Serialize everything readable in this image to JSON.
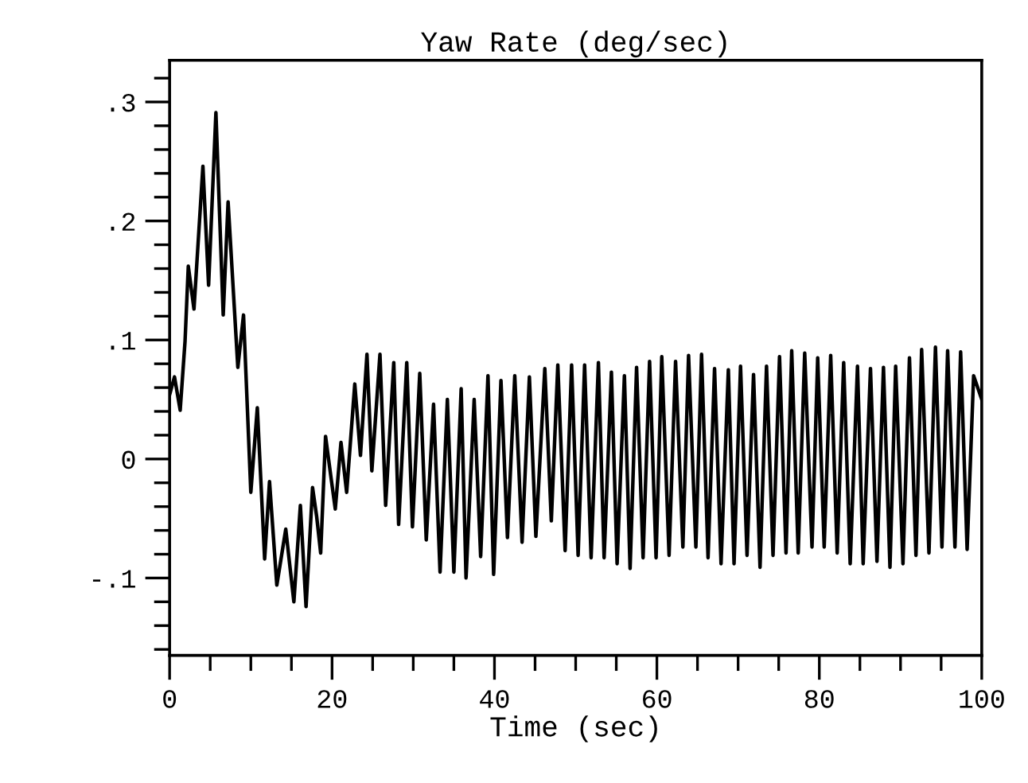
{
  "chart_data": {
    "type": "line",
    "title": "Yaw Rate (deg/sec)",
    "xlabel": "Time (sec)",
    "xlim": [
      0,
      100
    ],
    "ylim": [
      -0.165,
      0.335
    ],
    "xticks": [
      0,
      {
        "value": 5,
        "label": null
      },
      {
        "value": 10,
        "label": null
      },
      {
        "value": 15,
        "label": null
      },
      20,
      {
        "value": 25,
        "label": null
      },
      {
        "value": 30,
        "label": null
      },
      {
        "value": 35,
        "label": null
      },
      40,
      {
        "value": 45,
        "label": null
      },
      {
        "value": 50,
        "label": null
      },
      {
        "value": 55,
        "label": null
      },
      60,
      {
        "value": 65,
        "label": null
      },
      {
        "value": 70,
        "label": null
      },
      {
        "value": 75,
        "label": null
      },
      80,
      {
        "value": 85,
        "label": null
      },
      {
        "value": 90,
        "label": null
      },
      {
        "value": 95,
        "label": null
      },
      100
    ],
    "yticks": [
      {
        "value": -0.16,
        "label": null
      },
      {
        "value": -0.14,
        "label": null
      },
      {
        "value": -0.12,
        "label": null
      },
      {
        "value": -0.1,
        "label": "-.1"
      },
      {
        "value": -0.08,
        "label": null
      },
      {
        "value": -0.06,
        "label": null
      },
      {
        "value": -0.04,
        "label": null
      },
      {
        "value": -0.02,
        "label": null
      },
      0,
      {
        "value": 0.02,
        "label": null
      },
      {
        "value": 0.04,
        "label": null
      },
      {
        "value": 0.06,
        "label": null
      },
      {
        "value": 0.08,
        "label": null
      },
      {
        "value": 0.1,
        "label": ".1"
      },
      {
        "value": 0.12,
        "label": null
      },
      {
        "value": 0.14,
        "label": null
      },
      {
        "value": 0.16,
        "label": null
      },
      {
        "value": 0.18,
        "label": null
      },
      {
        "value": 0.2,
        "label": ".2"
      },
      {
        "value": 0.22,
        "label": null
      },
      {
        "value": 0.24,
        "label": null
      },
      {
        "value": 0.26,
        "label": null
      },
      {
        "value": 0.28,
        "label": null
      },
      {
        "value": 0.3,
        "label": ".3"
      },
      {
        "value": 0.32,
        "label": null
      }
    ],
    "grid": false,
    "marker": "none",
    "line_style": "solid",
    "series": [
      {
        "color": "#000000",
        "x": [
          0,
          0.6,
          1.3,
          1.9,
          2.3,
          3.0,
          4.1,
          4.8,
          5.7,
          6.6,
          7.2,
          8.4,
          9.1,
          10.0,
          10.8,
          11.7,
          12.3,
          13.2,
          14.3,
          15.3,
          16.1,
          16.8,
          17.6,
          18.1,
          18.6,
          19.2,
          19.9,
          20.4,
          21.1,
          21.8,
          22.8,
          23.5,
          24.3,
          24.9,
          25.9,
          26.6,
          27.6,
          28.2,
          29.2,
          29.9,
          30.8,
          31.6,
          32.5,
          33.3,
          34.2,
          35.0,
          35.9,
          36.5,
          37.5,
          38.3,
          39.2,
          39.9,
          40.8,
          41.6,
          42.5,
          43.4,
          44.3,
          45.1,
          46.2,
          47.0,
          47.8,
          48.7,
          49.5,
          50.3,
          51.1,
          51.9,
          52.8,
          53.5,
          54.4,
          55.1,
          56.0,
          56.7,
          57.5,
          58.3,
          59.1,
          59.9,
          60.6,
          61.5,
          62.3,
          63.2,
          63.9,
          64.8,
          65.5,
          66.3,
          67.1,
          67.9,
          68.8,
          69.5,
          70.3,
          71.1,
          71.9,
          72.7,
          73.5,
          74.3,
          75.1,
          75.9,
          76.6,
          77.4,
          78.2,
          79.1,
          79.8,
          80.6,
          81.4,
          82.2,
          83.0,
          83.8,
          84.7,
          85.4,
          86.3,
          87.1,
          87.9,
          88.7,
          89.4,
          90.3,
          91.1,
          91.9,
          92.6,
          93.5,
          94.3,
          95.1,
          95.8,
          96.7,
          97.4,
          98.2,
          99.0,
          100
        ],
        "values": [
          0.054,
          0.069,
          0.041,
          0.099,
          0.162,
          0.126,
          0.246,
          0.146,
          0.291,
          0.121,
          0.216,
          0.077,
          0.121,
          -0.028,
          0.043,
          -0.084,
          -0.019,
          -0.106,
          -0.059,
          -0.12,
          -0.039,
          -0.124,
          -0.024,
          -0.048,
          -0.079,
          0.019,
          -0.017,
          -0.042,
          0.014,
          -0.028,
          0.063,
          0.003,
          0.088,
          -0.01,
          0.088,
          -0.039,
          0.081,
          -0.055,
          0.081,
          -0.057,
          0.072,
          -0.068,
          0.046,
          -0.095,
          0.05,
          -0.095,
          0.059,
          -0.1,
          0.05,
          -0.082,
          0.07,
          -0.097,
          0.066,
          -0.066,
          0.07,
          -0.07,
          0.069,
          -0.065,
          0.076,
          -0.052,
          0.079,
          -0.077,
          0.079,
          -0.081,
          0.079,
          -0.083,
          0.081,
          -0.083,
          0.073,
          -0.088,
          0.07,
          -0.092,
          0.077,
          -0.083,
          0.082,
          -0.083,
          0.086,
          -0.081,
          0.082,
          -0.074,
          0.087,
          -0.074,
          0.088,
          -0.083,
          0.076,
          -0.088,
          0.075,
          -0.088,
          0.078,
          -0.081,
          0.071,
          -0.091,
          0.078,
          -0.081,
          0.086,
          -0.079,
          0.091,
          -0.079,
          0.089,
          -0.074,
          0.085,
          -0.074,
          0.087,
          -0.079,
          0.081,
          -0.088,
          0.078,
          -0.088,
          0.076,
          -0.086,
          0.077,
          -0.091,
          0.078,
          -0.088,
          0.085,
          -0.081,
          0.092,
          -0.079,
          0.094,
          -0.074,
          0.091,
          -0.074,
          0.09,
          -0.076,
          0.07,
          0.05
        ]
      }
    ]
  }
}
